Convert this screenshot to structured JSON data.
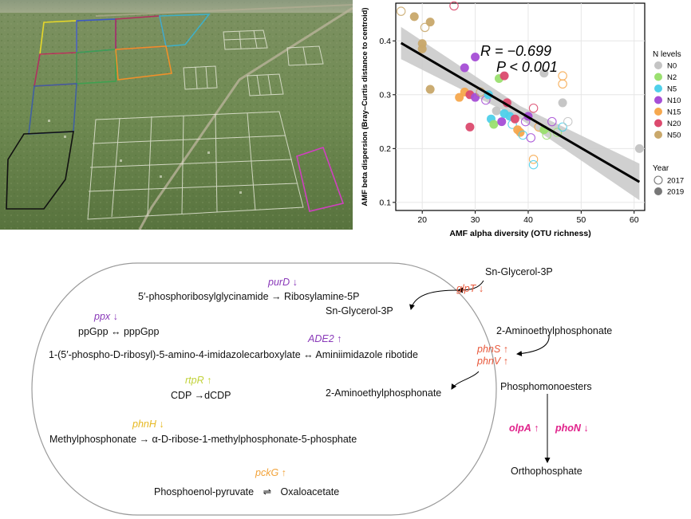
{
  "photo": {
    "description_icon": "aerial-field-plots-photo"
  },
  "chart_data": {
    "type": "scatter",
    "title": "",
    "xlabel": "AMF alpha diversity (OTU richness)",
    "ylabel": "AMF beta dispersion (Bray–Curtis distance to centroid)",
    "xlim": [
      15,
      62
    ],
    "ylim": [
      0.085,
      0.47
    ],
    "x_ticks": [
      "20",
      "30",
      "40",
      "50",
      "60"
    ],
    "y_ticks": [
      "0.1",
      "0.2",
      "0.3",
      "0.4"
    ],
    "grid": true,
    "annotation_r": "R = −0.699",
    "annotation_p": "P < 0.001",
    "regression": {
      "x0": 16,
      "y0": 0.396,
      "x1": 61,
      "y1": 0.138,
      "band_left": 0.03,
      "band_mid": 0.012,
      "band_right": 0.034
    },
    "legend_n": {
      "title": "N levels",
      "items": [
        {
          "label": "N0",
          "color": "#c4c4c4"
        },
        {
          "label": "N2",
          "color": "#9be070"
        },
        {
          "label": "N5",
          "color": "#4fd0ea"
        },
        {
          "label": "N10",
          "color": "#a64fd6"
        },
        {
          "label": "N15",
          "color": "#f6a84e"
        },
        {
          "label": "N20",
          "color": "#dc4a6e"
        },
        {
          "label": "N50",
          "color": "#c9a86b"
        }
      ]
    },
    "legend_year": {
      "title": "Year",
      "items": [
        {
          "label": "2017",
          "style": "open"
        },
        {
          "label": "2019",
          "style": "filled"
        }
      ]
    },
    "points": [
      {
        "x": 16,
        "y": 0.455,
        "n": "N50",
        "year": "2017"
      },
      {
        "x": 18.5,
        "y": 0.445,
        "n": "N50",
        "year": "2019"
      },
      {
        "x": 20.5,
        "y": 0.425,
        "n": "N50",
        "year": "2017"
      },
      {
        "x": 21.5,
        "y": 0.435,
        "n": "N50",
        "year": "2019"
      },
      {
        "x": 20,
        "y": 0.395,
        "n": "N50",
        "year": "2019"
      },
      {
        "x": 20,
        "y": 0.385,
        "n": "N50",
        "year": "2019"
      },
      {
        "x": 26,
        "y": 0.465,
        "n": "N20",
        "year": "2017"
      },
      {
        "x": 21.5,
        "y": 0.31,
        "n": "N50",
        "year": "2019"
      },
      {
        "x": 28,
        "y": 0.35,
        "n": "N10",
        "year": "2019"
      },
      {
        "x": 30,
        "y": 0.37,
        "n": "N10",
        "year": "2019"
      },
      {
        "x": 34.5,
        "y": 0.33,
        "n": "N2",
        "year": "2019"
      },
      {
        "x": 35.5,
        "y": 0.335,
        "n": "N20",
        "year": "2019"
      },
      {
        "x": 27,
        "y": 0.295,
        "n": "N15",
        "year": "2019"
      },
      {
        "x": 28,
        "y": 0.305,
        "n": "N15",
        "year": "2019"
      },
      {
        "x": 29,
        "y": 0.3,
        "n": "N20",
        "year": "2019"
      },
      {
        "x": 30,
        "y": 0.295,
        "n": "N10",
        "year": "2019"
      },
      {
        "x": 31,
        "y": 0.305,
        "n": "N50",
        "year": "2017"
      },
      {
        "x": 32,
        "y": 0.29,
        "n": "N10",
        "year": "2017"
      },
      {
        "x": 33,
        "y": 0.255,
        "n": "N5",
        "year": "2019"
      },
      {
        "x": 33.5,
        "y": 0.245,
        "n": "N2",
        "year": "2019"
      },
      {
        "x": 34,
        "y": 0.27,
        "n": "N0",
        "year": "2019"
      },
      {
        "x": 35,
        "y": 0.25,
        "n": "N10",
        "year": "2019"
      },
      {
        "x": 36,
        "y": 0.285,
        "n": "N20",
        "year": "2019"
      },
      {
        "x": 36.5,
        "y": 0.26,
        "n": "N5",
        "year": "2019"
      },
      {
        "x": 37,
        "y": 0.245,
        "n": "N5",
        "year": "2017"
      },
      {
        "x": 37.5,
        "y": 0.255,
        "n": "N20",
        "year": "2019"
      },
      {
        "x": 38,
        "y": 0.235,
        "n": "N15",
        "year": "2019"
      },
      {
        "x": 38.5,
        "y": 0.23,
        "n": "N15",
        "year": "2019"
      },
      {
        "x": 39,
        "y": 0.225,
        "n": "N5",
        "year": "2017"
      },
      {
        "x": 39.5,
        "y": 0.25,
        "n": "N10",
        "year": "2017"
      },
      {
        "x": 40,
        "y": 0.26,
        "n": "N10",
        "year": "2019"
      },
      {
        "x": 40.5,
        "y": 0.22,
        "n": "N10",
        "year": "2017"
      },
      {
        "x": 41,
        "y": 0.275,
        "n": "N20",
        "year": "2017"
      },
      {
        "x": 42,
        "y": 0.24,
        "n": "N15",
        "year": "2017"
      },
      {
        "x": 43,
        "y": 0.235,
        "n": "N2",
        "year": "2019"
      },
      {
        "x": 43.5,
        "y": 0.225,
        "n": "N2",
        "year": "2017"
      },
      {
        "x": 44.5,
        "y": 0.25,
        "n": "N10",
        "year": "2017"
      },
      {
        "x": 45.5,
        "y": 0.23,
        "n": "N2",
        "year": "2017"
      },
      {
        "x": 46.5,
        "y": 0.24,
        "n": "N5",
        "year": "2017"
      },
      {
        "x": 47.5,
        "y": 0.25,
        "n": "N0",
        "year": "2017"
      },
      {
        "x": 43,
        "y": 0.34,
        "n": "N0",
        "year": "2019"
      },
      {
        "x": 46.5,
        "y": 0.335,
        "n": "N15",
        "year": "2017"
      },
      {
        "x": 46.5,
        "y": 0.32,
        "n": "N15",
        "year": "2017"
      },
      {
        "x": 46.5,
        "y": 0.285,
        "n": "N0",
        "year": "2019"
      },
      {
        "x": 41,
        "y": 0.18,
        "n": "N15",
        "year": "2017"
      },
      {
        "x": 41,
        "y": 0.17,
        "n": "N5",
        "year": "2017"
      },
      {
        "x": 61,
        "y": 0.2,
        "n": "N0",
        "year": "2019"
      },
      {
        "x": 32.5,
        "y": 0.3,
        "n": "N5",
        "year": "2019"
      },
      {
        "x": 35.5,
        "y": 0.265,
        "n": "N5",
        "year": "2019"
      },
      {
        "x": 29,
        "y": 0.24,
        "n": "N20",
        "year": "2019"
      }
    ]
  },
  "pathway": {
    "purD": {
      "gene": "purD",
      "arrow": "↓",
      "color": "#8a3ab9"
    },
    "line_ribosylamine": "5′-phosphoribosylglycinamide → Ribosylamine-5P",
    "ppx": {
      "gene": "ppx",
      "arrow": "↓",
      "color": "#8a3ab9"
    },
    "line_ppgpp": "ppGpp   ↔   pppGpp",
    "ADE2": {
      "gene": "ADE2",
      "arrow": "↑",
      "color": "#8a3ab9"
    },
    "line_imidazole": "1-(5′-phospho-D-ribosyl)-5-amino-4-imidazolecarboxylate   ↔   Aminiimidazole ribotide",
    "rtpR": {
      "gene": "rtpR",
      "arrow": "↑",
      "color": "#c2d23a"
    },
    "line_cdp": "CDP →dCDP",
    "phnH": {
      "gene": "phnH",
      "arrow": "↓",
      "color": "#e6b820"
    },
    "line_methylphosphonate": "Methylphosphonate → α-D-ribose-1-methylphosphonate-5-phosphate",
    "pckG": {
      "gene": "pckG",
      "arrow": "↑",
      "color": "#f2a33a"
    },
    "line_pep_left": "Phosphoenol-pyruvate",
    "line_pep_arrow": "⇌",
    "line_pep_right": "Oxaloacetate",
    "glpT": {
      "gene": "glpT",
      "arrow": "↓",
      "color": "#e8573a"
    },
    "sn_glycerol_outside": "Sn-Glycerol-3P",
    "sn_glycerol_inside": "Sn-Glycerol-3P",
    "phnS": {
      "gene": "phnS",
      "arrow": "↑",
      "color": "#e8573a"
    },
    "phnV": {
      "gene": "phnV",
      "arrow": "↑",
      "color": "#e8573a"
    },
    "aep_outside": "2-Aminoethylphosphonate",
    "aep_inside": "2-Aminoethylphosphonate",
    "phosphomonoesters": "Phosphomonoesters",
    "olpA": {
      "gene": "olpA",
      "arrow": "↑",
      "color": "#e0218a"
    },
    "phoN": {
      "gene": "phoN",
      "arrow": "↓",
      "color": "#e0218a"
    },
    "orthophosphate": "Orthophosphate"
  }
}
